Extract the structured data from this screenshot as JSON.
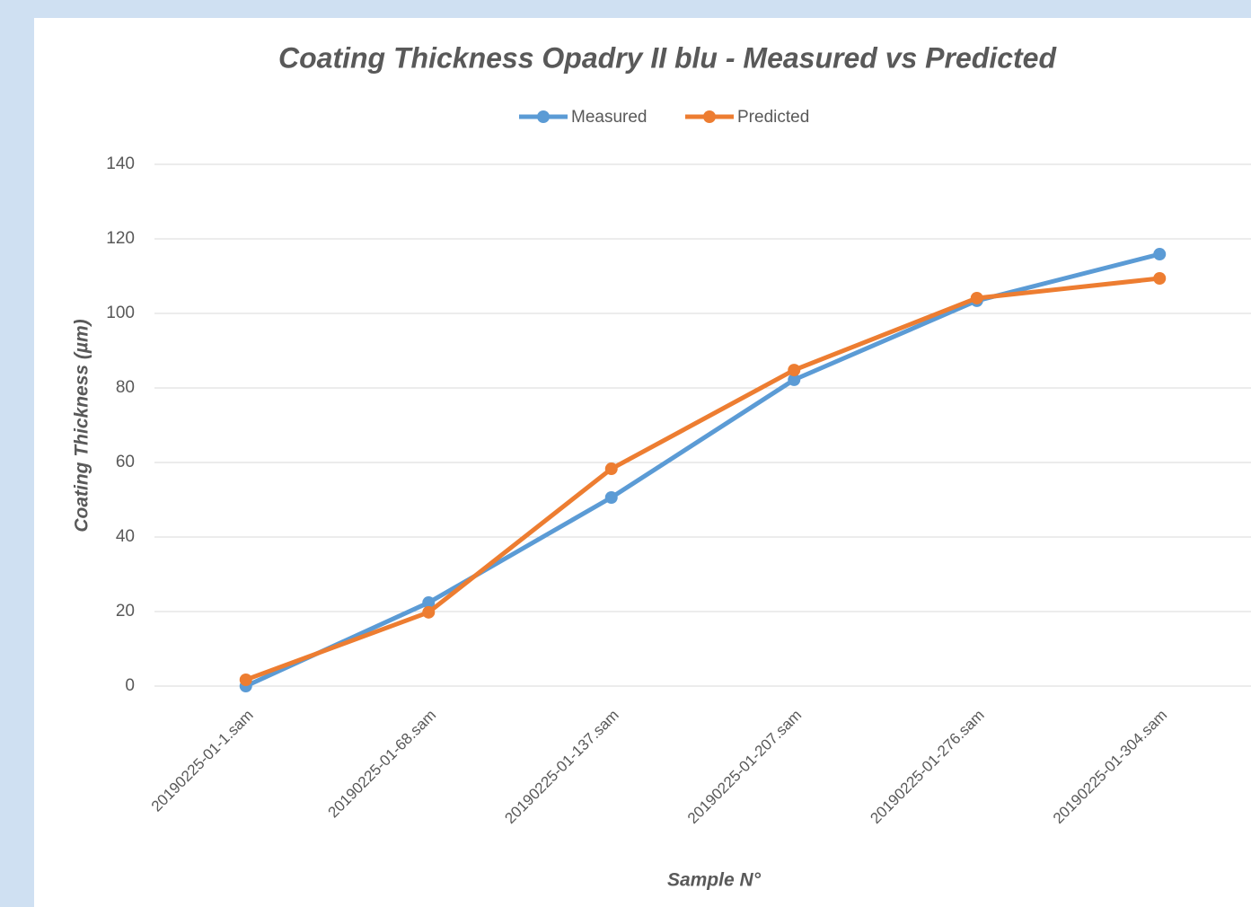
{
  "chart_data": {
    "type": "line",
    "title": "Coating Thickness Opadry II blu - Measured vs Predicted",
    "x_label": "Sample N°",
    "y_label": "Coating Thickness (µm)",
    "categories": [
      "20190225-01-1.sam",
      "20190225-01-68.sam",
      "20190225-01-137.sam",
      "20190225-01-207.sam",
      "20190225-01-276.sam",
      "20190225-01-304.sam"
    ],
    "series": [
      {
        "name": "Measured",
        "color": "#5b9bd5",
        "values": [
          0,
          22.4,
          50.6,
          82.2,
          103.4,
          115.9
        ]
      },
      {
        "name": "Predicted",
        "color": "#ed7d31",
        "values": [
          1.7,
          19.8,
          58.3,
          84.8,
          104.1,
          109.4
        ]
      }
    ],
    "ylim": [
      0,
      140
    ],
    "yticks": [
      0,
      20,
      40,
      60,
      80,
      100,
      120,
      140
    ],
    "grid": true,
    "legend": "top"
  }
}
